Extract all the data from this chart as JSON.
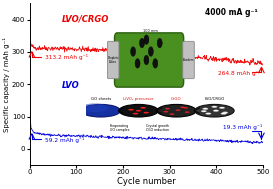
{
  "title": "4000 mA g⁻¹",
  "xlabel": "Cycle number",
  "ylabel": "Specific capacity / mAh g⁻¹",
  "xlim": [
    0,
    500
  ],
  "ylim": [
    -50,
    450
  ],
  "yticks": [
    0,
    100,
    200,
    300,
    400
  ],
  "xticks": [
    0,
    100,
    200,
    300,
    400,
    500
  ],
  "lvo_crgo_label": "LVO/CRGO",
  "lvo_label": "LVO",
  "lvo_crgo_color": "#EE0000",
  "lvo_color": "#0000DD",
  "annotation_crgo_start": "313.2 mAh g⁻¹",
  "annotation_crgo_end": "264.8 mAh g⁻¹",
  "annotation_lvo_start": "59.2 mAh g⁻¹",
  "annotation_lvo_end": "19.3 mAh g⁻¹",
  "bg_color": "#ffffff",
  "seed": 42
}
